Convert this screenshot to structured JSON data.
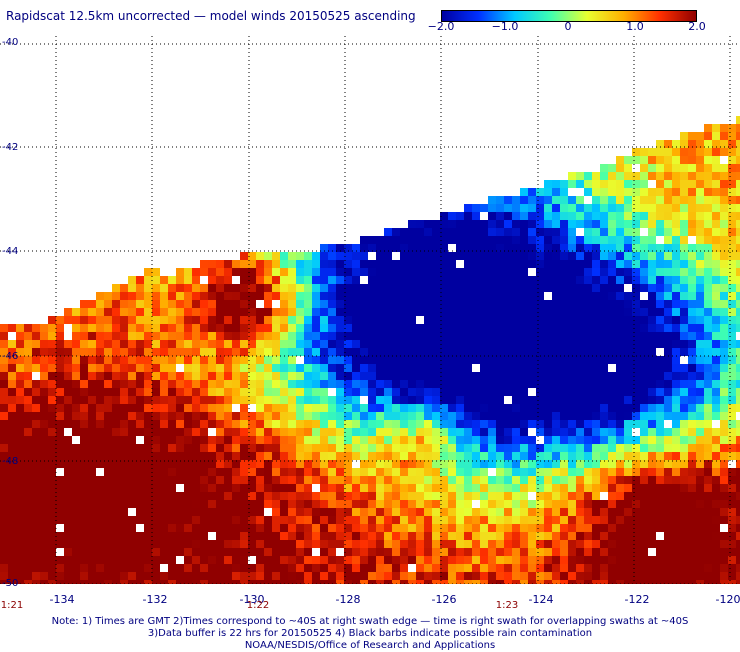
{
  "title": "Rapidscat 12.5km uncorrected — model winds 20150525 ascending",
  "colorbar": {
    "ticks": [
      "−2.0",
      "−1.0",
      "0",
      "1.0",
      "2.0"
    ],
    "tick_values": [
      -2.0,
      -1.0,
      0,
      1.0,
      2.0
    ],
    "colors": [
      "#0000a0",
      "#0030ff",
      "#00c8ff",
      "#40ffb0",
      "#e8ff30",
      "#ffb000",
      "#ff3000",
      "#900000"
    ]
  },
  "map": {
    "lat_labels": [
      "-40",
      "-42",
      "-44",
      "-46",
      "-48",
      "-50"
    ],
    "lon_labels": [
      "-134",
      "-132",
      "-130",
      "-128",
      "-126",
      "-124",
      "-122",
      "-120"
    ],
    "time_labels": [
      "1:21",
      "1:22",
      "1:23"
    ]
  },
  "notes": {
    "line1": "Note: 1) Times are GMT 2)Times correspond to ~40S at right swath edge — time is right swath for overlapping swaths at ~40S",
    "line2": "3)Data buffer is 22 hrs for 20150525 4) Black barbs indicate possible rain contamination",
    "line3": "NOAA/NESDIS/Office of Research and Applications"
  }
}
